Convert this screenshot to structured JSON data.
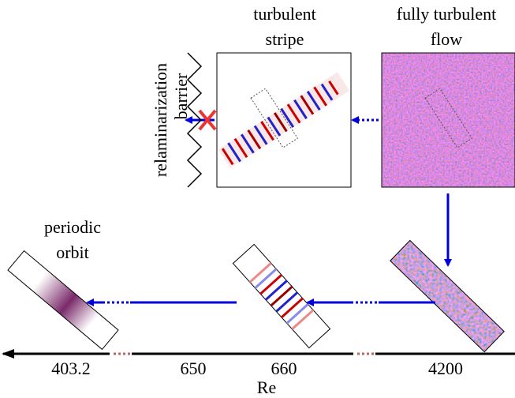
{
  "stripe_label": [
    "turbulent",
    "stripe"
  ],
  "turbulent_label": [
    "fully turbulent",
    "flow"
  ],
  "barrier_label": [
    "relaminarization",
    "barrier"
  ],
  "orbit_label": [
    "periodic",
    "orbit"
  ],
  "axis": {
    "ticks": [
      "403.2",
      "650",
      "660",
      "4200"
    ],
    "label": "Re"
  }
}
